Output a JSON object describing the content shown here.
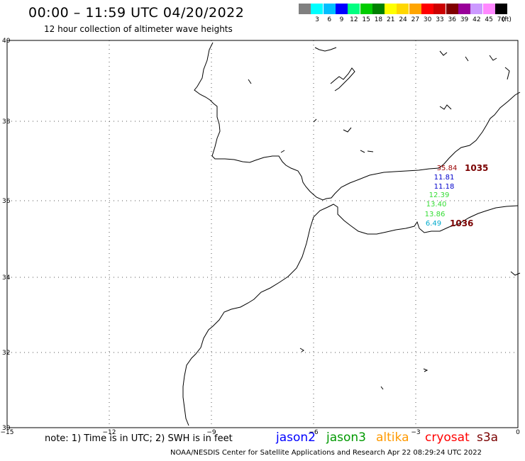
{
  "header": {
    "title": "00:00 – 11:59 UTC 04/20/2022",
    "subtitle": "12 hour collection of altimeter wave heights"
  },
  "scale": {
    "unit_label": "(ft)",
    "bins": [
      {
        "color": "#808080",
        "label": ""
      },
      {
        "color": "#00ffff",
        "label": "3"
      },
      {
        "color": "#00bfff",
        "label": "6"
      },
      {
        "color": "#0000ff",
        "label": "9"
      },
      {
        "color": "#00ff80",
        "label": "12"
      },
      {
        "color": "#00cc00",
        "label": "15"
      },
      {
        "color": "#008000",
        "label": "18"
      },
      {
        "color": "#ffff00",
        "label": "21"
      },
      {
        "color": "#ffd700",
        "label": "24"
      },
      {
        "color": "#ffa500",
        "label": "27"
      },
      {
        "color": "#ff0000",
        "label": "30"
      },
      {
        "color": "#cc0000",
        "label": "33"
      },
      {
        "color": "#800000",
        "label": "36"
      },
      {
        "color": "#990099",
        "label": "39"
      },
      {
        "color": "#cc99ff",
        "label": "42"
      },
      {
        "color": "#ff88ff",
        "label": "45"
      },
      {
        "color": "#000000",
        "label": "70"
      }
    ]
  },
  "axes": {
    "lat_labels": [
      "40",
      "38",
      "36",
      "34",
      "32",
      "30"
    ],
    "lon_labels": [
      "−15",
      "−12",
      "−9",
      "−6",
      "−3",
      "0"
    ]
  },
  "observations": [
    {
      "text": "35.84",
      "color": "#990000"
    },
    {
      "text": "11.81",
      "color": "#0000cc"
    },
    {
      "text": "11.18",
      "color": "#0000cc"
    },
    {
      "text": "12.39",
      "color": "#33dd33"
    },
    {
      "text": "13.40",
      "color": "#33dd33"
    },
    {
      "text": "13.86",
      "color": "#33dd33"
    },
    {
      "text": "6.49",
      "color": "#00aacc"
    }
  ],
  "pressure_labels": [
    {
      "text": "1035",
      "color": "#7a0000"
    },
    {
      "text": "1036",
      "color": "#7a0000"
    }
  ],
  "footer": {
    "note": "note: 1) Time is in UTC; 2) SWH is in feet",
    "satellites": [
      {
        "name": "jason2",
        "color": "#0000ff"
      },
      {
        "name": "jason3",
        "color": "#009900"
      },
      {
        "name": "altika",
        "color": "#ff9900"
      },
      {
        "name": "cryosat",
        "color": "#ff0000"
      },
      {
        "name": "s3a",
        "color": "#7a0000"
      }
    ],
    "credit": "NOAA/NESDIS Center for Satellite Applications and Research     Apr 22 08:29:24 UTC 2022"
  }
}
